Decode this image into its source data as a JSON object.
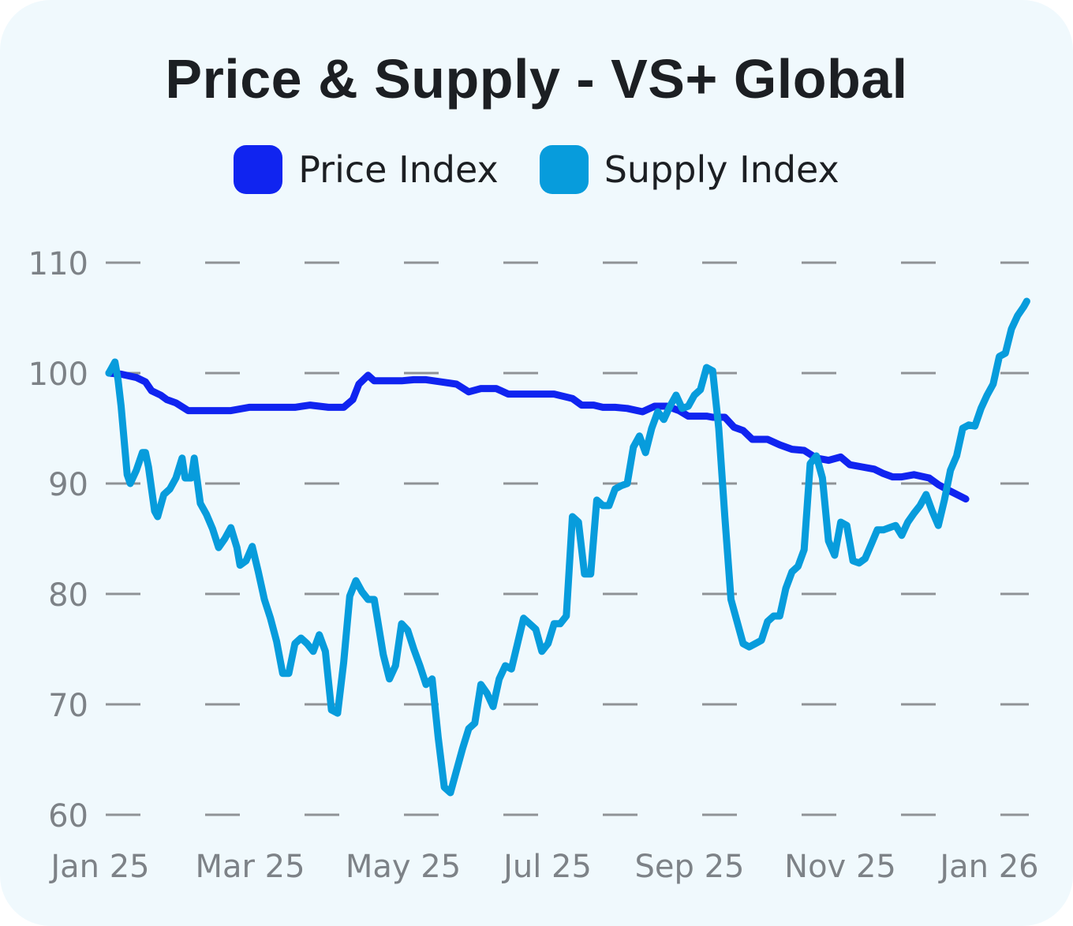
{
  "chart_data": {
    "type": "line",
    "title": "Price & Supply - VS+ Global",
    "ylim": [
      60,
      110
    ],
    "yticks": [
      "60",
      "70",
      "80",
      "90",
      "100",
      "110"
    ],
    "xticks": [
      "Jan 25",
      "Mar 25",
      "May 25",
      "Jul 25",
      "Sep 25",
      "Nov 25",
      "Jan 26"
    ],
    "x_range_months": [
      0,
      12.6
    ],
    "grid": true,
    "legend_position": "top",
    "series": [
      {
        "name": "Price Index",
        "color": "#1024f0",
        "points": [
          [
            0.0,
            100.0
          ],
          [
            0.2,
            99.9
          ],
          [
            0.45,
            99.6
          ],
          [
            0.6,
            99.2
          ],
          [
            0.7,
            98.4
          ],
          [
            0.85,
            98.0
          ],
          [
            0.95,
            97.6
          ],
          [
            1.1,
            97.3
          ],
          [
            1.3,
            96.6
          ],
          [
            1.6,
            96.6
          ],
          [
            2.0,
            96.6
          ],
          [
            2.3,
            96.9
          ],
          [
            2.7,
            96.9
          ],
          [
            3.05,
            96.9
          ],
          [
            3.3,
            97.1
          ],
          [
            3.6,
            96.9
          ],
          [
            3.85,
            96.9
          ],
          [
            4.0,
            97.6
          ],
          [
            4.1,
            99.0
          ],
          [
            4.25,
            99.8
          ],
          [
            4.35,
            99.3
          ],
          [
            4.6,
            99.3
          ],
          [
            4.8,
            99.3
          ],
          [
            5.0,
            99.4
          ],
          [
            5.2,
            99.4
          ],
          [
            5.45,
            99.2
          ],
          [
            5.7,
            99.0
          ],
          [
            5.9,
            98.3
          ],
          [
            6.1,
            98.6
          ],
          [
            6.35,
            98.6
          ],
          [
            6.55,
            98.1
          ],
          [
            6.8,
            98.1
          ],
          [
            7.0,
            98.1
          ],
          [
            7.3,
            98.1
          ],
          [
            7.6,
            97.7
          ],
          [
            7.75,
            97.1
          ],
          [
            7.95,
            97.1
          ],
          [
            8.1,
            96.9
          ],
          [
            8.3,
            96.9
          ],
          [
            8.5,
            96.8
          ],
          [
            8.75,
            96.5
          ],
          [
            8.95,
            97.0
          ],
          [
            9.15,
            97.0
          ],
          [
            9.35,
            96.6
          ],
          [
            9.5,
            96.1
          ],
          [
            9.7,
            96.1
          ],
          [
            9.8,
            96.1
          ],
          [
            9.9,
            96.0
          ],
          [
            10.1,
            96.0
          ],
          [
            10.25,
            95.1
          ],
          [
            10.4,
            94.8
          ],
          [
            10.55,
            94.0
          ],
          [
            10.8,
            94.0
          ],
          [
            11.0,
            93.5
          ],
          [
            11.2,
            93.1
          ],
          [
            11.4,
            93.0
          ],
          [
            11.6,
            92.3
          ],
          [
            11.8,
            92.1
          ],
          [
            12.0,
            92.4
          ],
          [
            12.15,
            91.7
          ],
          [
            12.35,
            91.5
          ],
          [
            12.55,
            91.3
          ],
          [
            12.7,
            90.9
          ],
          [
            12.85,
            90.6
          ],
          [
            13.0,
            90.6
          ],
          [
            13.2,
            90.8
          ],
          [
            13.45,
            90.5
          ],
          [
            13.6,
            89.9
          ],
          [
            13.8,
            89.3
          ],
          [
            14.05,
            88.6
          ]
        ]
      },
      {
        "name": "Supply Index",
        "color": "#079cdc",
        "points": [
          [
            0.0,
            100.0
          ],
          [
            0.05,
            100.5
          ],
          [
            0.1,
            101.0
          ],
          [
            0.15,
            99.4
          ],
          [
            0.2,
            97.0
          ],
          [
            0.3,
            90.8
          ],
          [
            0.35,
            90.0
          ],
          [
            0.45,
            91.2
          ],
          [
            0.55,
            92.8
          ],
          [
            0.6,
            92.8
          ],
          [
            0.65,
            91.5
          ],
          [
            0.75,
            87.5
          ],
          [
            0.8,
            87.0
          ],
          [
            0.9,
            89.0
          ],
          [
            1.0,
            89.5
          ],
          [
            1.1,
            90.5
          ],
          [
            1.2,
            92.3
          ],
          [
            1.25,
            90.5
          ],
          [
            1.35,
            90.5
          ],
          [
            1.4,
            92.3
          ],
          [
            1.5,
            88.2
          ],
          [
            1.6,
            87.2
          ],
          [
            1.7,
            85.9
          ],
          [
            1.8,
            84.2
          ],
          [
            1.9,
            85.0
          ],
          [
            2.0,
            86.0
          ],
          [
            2.1,
            84.2
          ],
          [
            2.15,
            82.6
          ],
          [
            2.25,
            83.0
          ],
          [
            2.35,
            84.3
          ],
          [
            2.45,
            82.0
          ],
          [
            2.55,
            79.5
          ],
          [
            2.65,
            77.8
          ],
          [
            2.75,
            75.7
          ],
          [
            2.85,
            72.8
          ],
          [
            2.95,
            72.8
          ],
          [
            3.05,
            75.5
          ],
          [
            3.15,
            76.0
          ],
          [
            3.25,
            75.5
          ],
          [
            3.35,
            74.8
          ],
          [
            3.45,
            76.3
          ],
          [
            3.55,
            74.8
          ],
          [
            3.65,
            69.5
          ],
          [
            3.75,
            69.2
          ],
          [
            3.85,
            73.8
          ],
          [
            3.95,
            79.8
          ],
          [
            4.05,
            81.2
          ],
          [
            4.15,
            80.2
          ],
          [
            4.25,
            79.5
          ],
          [
            4.35,
            79.5
          ],
          [
            4.5,
            74.5
          ],
          [
            4.6,
            72.3
          ],
          [
            4.7,
            73.5
          ],
          [
            4.8,
            77.3
          ],
          [
            4.9,
            76.7
          ],
          [
            5.0,
            75.0
          ],
          [
            5.1,
            73.5
          ],
          [
            5.2,
            71.8
          ],
          [
            5.3,
            72.3
          ],
          [
            5.4,
            67.0
          ],
          [
            5.5,
            62.5
          ],
          [
            5.6,
            62.0
          ],
          [
            5.7,
            64.0
          ],
          [
            5.8,
            66.0
          ],
          [
            5.9,
            67.8
          ],
          [
            6.0,
            68.3
          ],
          [
            6.1,
            71.8
          ],
          [
            6.2,
            71.0
          ],
          [
            6.3,
            69.8
          ],
          [
            6.4,
            72.3
          ],
          [
            6.5,
            73.5
          ],
          [
            6.6,
            73.2
          ],
          [
            6.7,
            75.5
          ],
          [
            6.8,
            77.8
          ],
          [
            6.9,
            77.3
          ],
          [
            7.0,
            76.8
          ],
          [
            7.1,
            74.8
          ],
          [
            7.2,
            75.5
          ],
          [
            7.3,
            77.3
          ],
          [
            7.4,
            77.3
          ],
          [
            7.5,
            78.0
          ],
          [
            7.6,
            87.0
          ],
          [
            7.7,
            86.5
          ],
          [
            7.8,
            81.8
          ],
          [
            7.9,
            81.8
          ],
          [
            8.0,
            88.5
          ],
          [
            8.1,
            88.0
          ],
          [
            8.2,
            88.0
          ],
          [
            8.3,
            89.5
          ],
          [
            8.4,
            89.8
          ],
          [
            8.5,
            90.0
          ],
          [
            8.6,
            93.3
          ],
          [
            8.7,
            94.3
          ],
          [
            8.8,
            92.8
          ],
          [
            8.9,
            95.0
          ],
          [
            9.0,
            96.5
          ],
          [
            9.1,
            95.8
          ],
          [
            9.2,
            97.0
          ],
          [
            9.3,
            98.0
          ],
          [
            9.4,
            96.8
          ],
          [
            9.5,
            97.0
          ],
          [
            9.6,
            98.0
          ],
          [
            9.7,
            98.5
          ],
          [
            9.8,
            100.5
          ],
          [
            9.9,
            100.2
          ],
          [
            10.0,
            95.0
          ],
          [
            10.1,
            87.0
          ],
          [
            10.2,
            79.5
          ],
          [
            10.3,
            77.5
          ],
          [
            10.4,
            75.5
          ],
          [
            10.5,
            75.2
          ],
          [
            10.6,
            75.5
          ],
          [
            10.7,
            75.8
          ],
          [
            10.8,
            77.5
          ],
          [
            10.9,
            78.0
          ],
          [
            11.0,
            78.0
          ],
          [
            11.1,
            80.5
          ],
          [
            11.2,
            82.0
          ],
          [
            11.3,
            82.5
          ],
          [
            11.4,
            84.0
          ],
          [
            11.5,
            91.8
          ],
          [
            11.6,
            92.5
          ],
          [
            11.7,
            90.5
          ],
          [
            11.8,
            84.8
          ],
          [
            11.9,
            83.5
          ],
          [
            12.0,
            86.5
          ],
          [
            12.1,
            86.2
          ],
          [
            12.2,
            83.0
          ],
          [
            12.3,
            82.8
          ],
          [
            12.4,
            83.2
          ],
          [
            12.5,
            84.5
          ],
          [
            12.6,
            85.8
          ],
          [
            12.7,
            85.8
          ],
          [
            12.8,
            86.0
          ],
          [
            12.9,
            86.2
          ],
          [
            13.0,
            85.3
          ],
          [
            13.1,
            86.5
          ],
          [
            13.2,
            87.3
          ],
          [
            13.3,
            88.0
          ],
          [
            13.4,
            89.0
          ],
          [
            13.5,
            87.5
          ],
          [
            13.6,
            86.2
          ],
          [
            13.7,
            88.5
          ],
          [
            13.8,
            91.2
          ],
          [
            13.9,
            92.5
          ],
          [
            14.0,
            95.0
          ],
          [
            14.1,
            95.3
          ],
          [
            14.2,
            95.2
          ],
          [
            14.3,
            96.8
          ],
          [
            14.4,
            98.0
          ],
          [
            14.5,
            99.0
          ],
          [
            14.6,
            101.5
          ],
          [
            14.7,
            101.8
          ],
          [
            14.8,
            104.0
          ],
          [
            14.9,
            105.2
          ],
          [
            15.0,
            106.0
          ],
          [
            15.05,
            106.5
          ]
        ]
      }
    ]
  }
}
